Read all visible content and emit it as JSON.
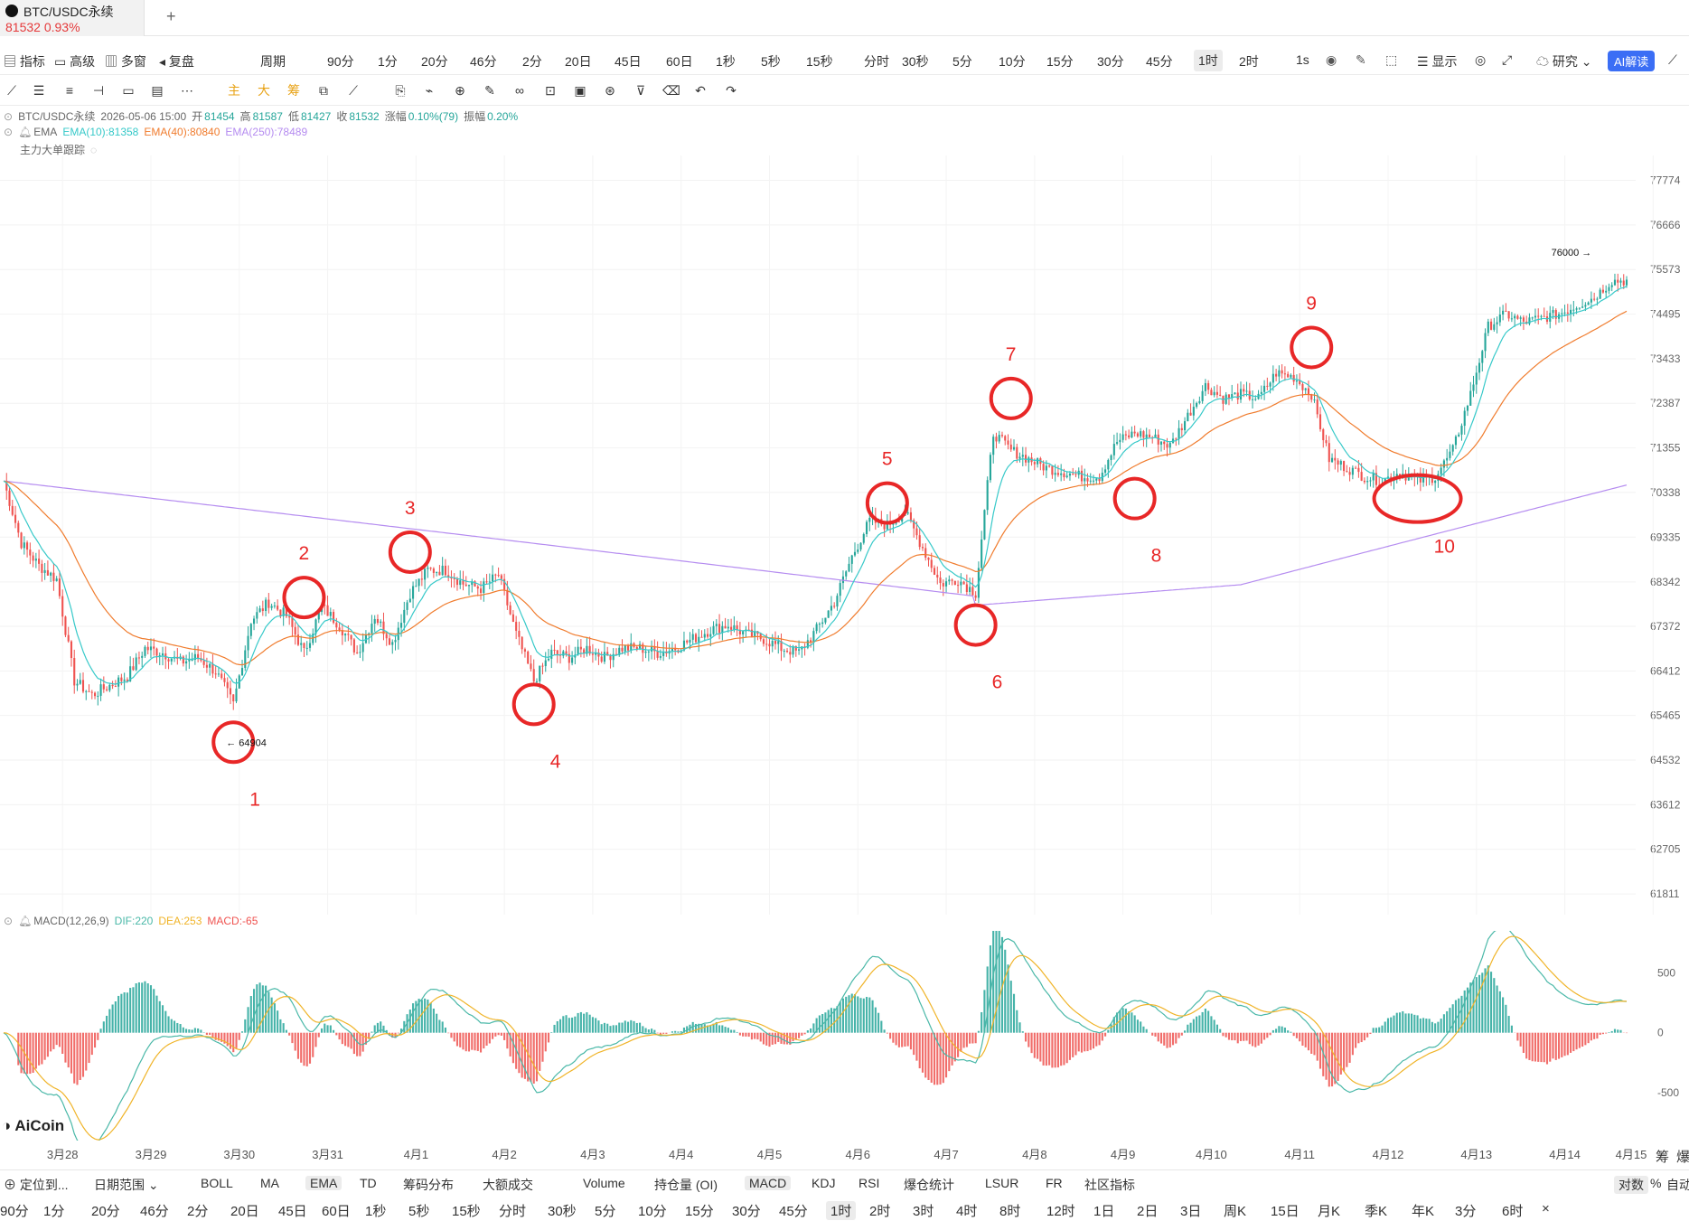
{
  "tab": {
    "name": "BTC/USDC永续",
    "price": "81532  0.93%"
  },
  "toolbar1": {
    "left": [
      "指标",
      "高级",
      "多窗",
      "复盘",
      "周期"
    ],
    "periods": [
      "90分",
      "1分",
      "20分",
      "46分",
      "2分",
      "20日",
      "45日",
      "60日",
      "1秒",
      "5秒",
      "15秒",
      "分时",
      "30秒",
      "5分",
      "10分",
      "15分",
      "30分",
      "45分",
      "1时",
      "2时"
    ],
    "selected_period": "1时",
    "right": [
      "1s",
      "显示",
      "研究",
      "AI解读"
    ]
  },
  "draw_tools": [
    "主",
    "大",
    "筹"
  ],
  "info": {
    "symbol": "BTC/USDC永续",
    "datetime": "2026-05-06 15:00",
    "open_label": "开",
    "open": "81454",
    "high_label": "高",
    "high": "81587",
    "low_label": "低",
    "low": "81427",
    "close_label": "收",
    "close": "81532",
    "change_label": "涨幅",
    "change": "0.10%(79)",
    "amp_label": "振幅",
    "amp": "0.20%"
  },
  "ema_legend": {
    "name": "EMA",
    "ema10": "EMA(10):81358",
    "ema40": "EMA(40):80840",
    "ema250": "EMA(250):78489"
  },
  "indicator3": "主力大单跟踪",
  "macd_legend": {
    "name": "MACD(12,26,9)",
    "dif": "DIF:220",
    "dea": "DEA:253",
    "macd": "MACD:-65"
  },
  "colors": {
    "up": "#26a69a",
    "down": "#ef5350",
    "ema10": "#37c9c9",
    "ema40": "#f07c2e",
    "ema250": "#b58cf0",
    "dif": "#4ab8a8",
    "dea": "#f0b429",
    "annot": "#e82727"
  },
  "chart_data": {
    "type": "candlestick",
    "title": "",
    "y_ticks": [
      77774,
      76666,
      75573,
      74495,
      73433,
      72387,
      71355,
      70338,
      69335,
      68342,
      67372,
      66412,
      65465,
      64532,
      63612,
      62705,
      61811
    ],
    "ylim": [
      61400,
      78400
    ],
    "x_ticks": [
      "3月28",
      "3月29",
      "3月30",
      "3月31",
      "4月1",
      "4月2",
      "4月3",
      "4月4",
      "4月5",
      "4月6",
      "4月7",
      "4月8",
      "4月9",
      "4月10",
      "4月11",
      "4月12",
      "4月13",
      "4月14",
      "4月15"
    ],
    "close_path": [
      70600,
      69200,
      68700,
      68400,
      66200,
      65900,
      66100,
      66300,
      66900,
      66800,
      66600,
      66700,
      66400,
      65700,
      67500,
      67900,
      67600,
      66800,
      67800,
      67400,
      66800,
      67600,
      67000,
      68100,
      68600,
      68600,
      68300,
      68200,
      68500,
      67200,
      66200,
      66800,
      66700,
      66900,
      66700,
      66900,
      66900,
      66800,
      66900,
      67100,
      67300,
      67400,
      67200,
      67100,
      66900,
      66800,
      67300,
      67900,
      68900,
      69700,
      69600,
      69900,
      69100,
      68300,
      68400,
      68100,
      71700,
      71300,
      71100,
      70900,
      70800,
      70700,
      70700,
      71500,
      71700,
      71600,
      71400,
      72100,
      72800,
      72500,
      72600,
      72500,
      73100,
      73000,
      72600,
      71100,
      70900,
      70700,
      70600,
      70800,
      70600,
      70700,
      71300,
      72600,
      74200,
      74500,
      74300,
      74400,
      74500,
      74700,
      74900,
      75300
    ],
    "annotations": [
      {
        "label": "1",
        "x_index": 13,
        "price": 64904
      },
      {
        "label": "2",
        "x_index": 17,
        "price": 68000
      },
      {
        "label": "3",
        "x_index": 23,
        "price": 69000
      },
      {
        "label": "4",
        "x_index": 30,
        "price": 65700
      },
      {
        "label": "5",
        "x_index": 50,
        "price": 70100
      },
      {
        "label": "6",
        "x_index": 55,
        "price": 67400
      },
      {
        "label": "7",
        "x_index": 57,
        "price": 72500
      },
      {
        "label": "8",
        "x_index": 64,
        "price": 70200
      },
      {
        "label": "9",
        "x_index": 74,
        "price": 73700
      },
      {
        "label": "10",
        "x_index": 80,
        "price": 70200
      }
    ],
    "high_marker": "76000",
    "low_marker": "64904",
    "macd_ticks": [
      "500",
      "0",
      "-500"
    ],
    "macd_ylim": [
      -900,
      850
    ]
  },
  "brand": "AiCoin",
  "corner": [
    "筹",
    "爆"
  ],
  "bottom1": {
    "items": [
      "定位到...",
      "日期范围",
      "BOLL",
      "MA",
      "EMA",
      "TD",
      "筹码分布",
      "大额成交",
      "Volume",
      "持仓量 (OI)",
      "MACD",
      "KDJ",
      "RSI",
      "爆仓统计",
      "LSUR",
      "FR",
      "社区指标",
      "对数",
      "%",
      "自动"
    ],
    "selected": [
      "EMA",
      "MACD",
      "对数"
    ]
  },
  "bottom2": {
    "items": [
      "90分",
      "1分",
      "20分",
      "46分",
      "2分",
      "20日",
      "45日",
      "60日",
      "1秒",
      "5秒",
      "15秒",
      "分时",
      "30秒",
      "5分",
      "10分",
      "15分",
      "30分",
      "45分",
      "1时",
      "2时",
      "3时",
      "4时",
      "8时",
      "12时",
      "1日",
      "2日",
      "3日",
      "周K",
      "15日",
      "月K",
      "季K",
      "年K",
      "3分",
      "6时",
      "×"
    ],
    "selected": "1时"
  }
}
